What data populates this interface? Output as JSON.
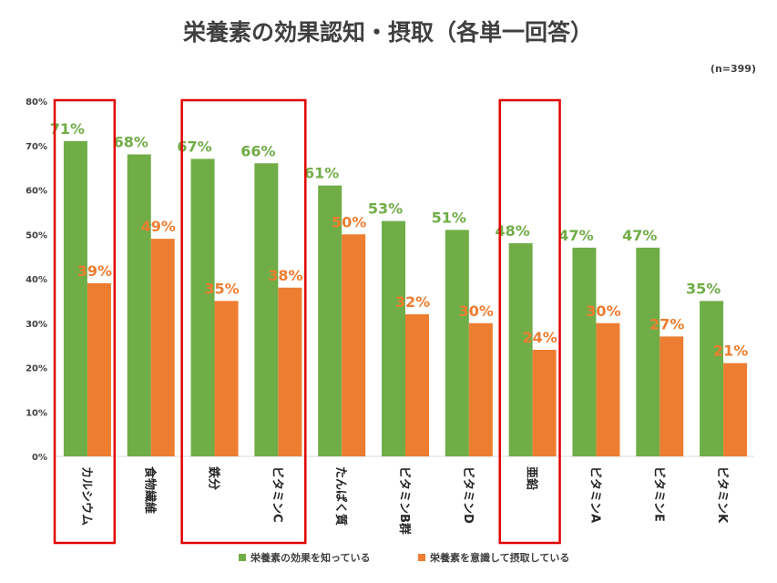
{
  "chart_data": {
    "type": "bar",
    "title": "栄養素の効果認知・摂取（各単一回答）",
    "note": "(n=399)",
    "categories": [
      "カルシウム",
      "食物繊維",
      "鉄分",
      "ビタミンC",
      "たんぱく質",
      "ビタミンB群",
      "ビタミンD",
      "亜鉛",
      "ビタミンA",
      "ビタミンE",
      "ビタミンK"
    ],
    "series": [
      {
        "name": "栄養素の効果を知っている",
        "color": "#70AD47",
        "values": [
          71,
          68,
          67,
          66,
          61,
          53,
          51,
          48,
          47,
          47,
          35
        ]
      },
      {
        "name": "栄養素を意識して摂取している",
        "color": "#ED7D31",
        "values": [
          39,
          49,
          35,
          38,
          50,
          32,
          30,
          24,
          30,
          27,
          21
        ]
      }
    ],
    "ylim": [
      0,
      80
    ],
    "yticks": [
      "0%",
      "10%",
      "20%",
      "30%",
      "40%",
      "50%",
      "60%",
      "70%",
      "80%"
    ],
    "value_suffix": "%",
    "highlighted_groups": [
      [
        0
      ],
      [
        2,
        3
      ],
      [
        7
      ]
    ],
    "highlight_color": "#E00000",
    "legend_position": "bottom",
    "grid": false
  }
}
